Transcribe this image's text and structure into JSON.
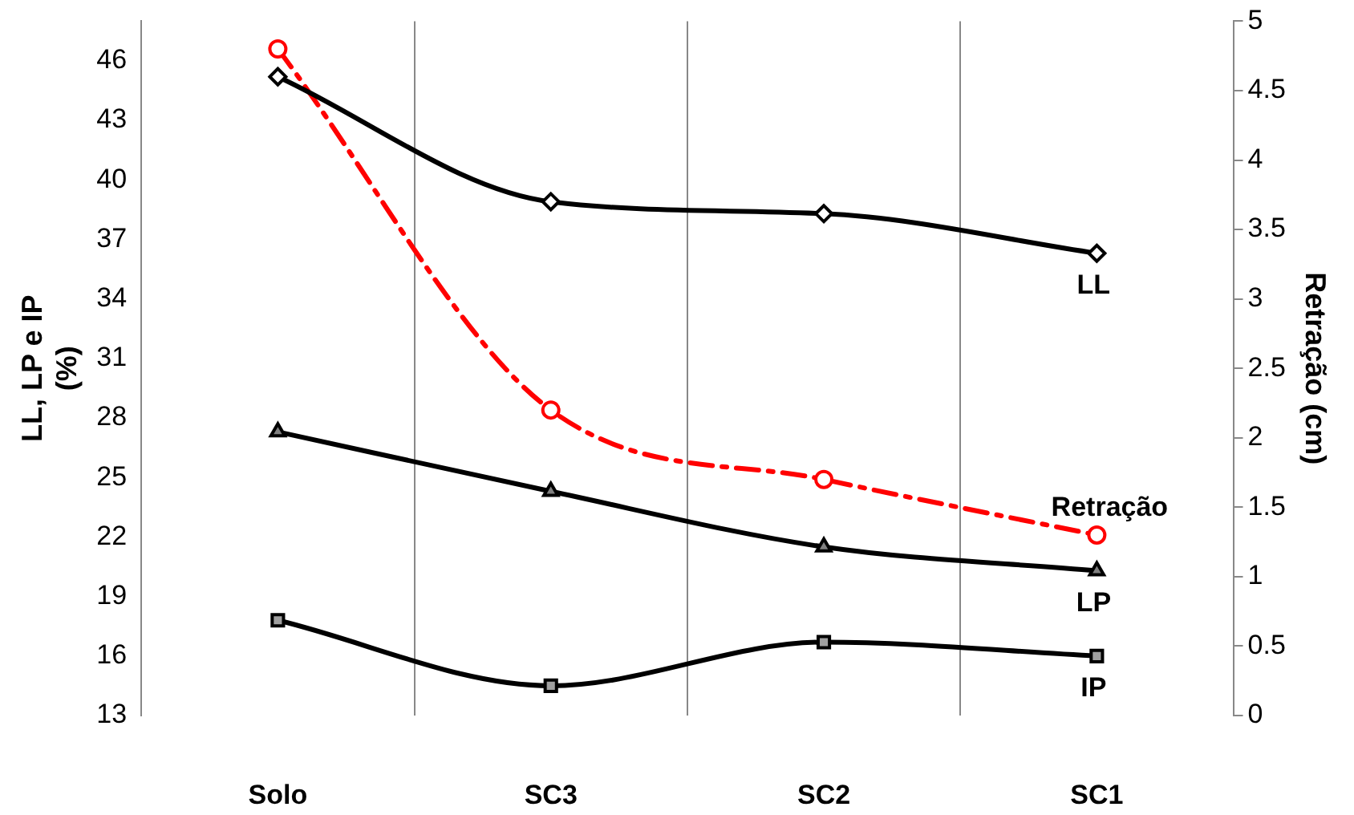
{
  "chart_data": {
    "type": "line",
    "categories": [
      "Solo",
      "SC3",
      "SC2",
      "SC1"
    ],
    "ylabel": "LL, LP e IP (%)",
    "y2label": "Retração (cm)",
    "ylim": [
      13,
      48
    ],
    "yticks": [
      13,
      16,
      19,
      22,
      25,
      28,
      31,
      34,
      37,
      40,
      43,
      46
    ],
    "y2lim": [
      0,
      5
    ],
    "y2ticks": [
      0,
      0.5,
      1,
      1.5,
      2,
      2.5,
      3,
      3.5,
      4,
      4.5,
      5
    ],
    "grid": "x",
    "legend": false,
    "series": [
      {
        "name": "LL",
        "color": "#000000",
        "marker": "diamond",
        "line_style": "solid",
        "values": [
          45.2,
          38.9,
          38.3,
          36.3
        ]
      },
      {
        "name": "Retração",
        "color": "#ff0000",
        "marker": "circle",
        "line_style": "dashed",
        "axis": "y2",
        "values": [
          4.8,
          2.2,
          1.7,
          1.3
        ]
      },
      {
        "name": "LP",
        "color": "#000000",
        "marker": "triangle",
        "line_style": "solid",
        "values": [
          27.3,
          24.3,
          21.5,
          20.3
        ]
      },
      {
        "name": "IP",
        "color": "#000000",
        "marker": "square",
        "line_style": "solid",
        "values": [
          17.8,
          14.5,
          16.7,
          16.0
        ]
      }
    ]
  }
}
